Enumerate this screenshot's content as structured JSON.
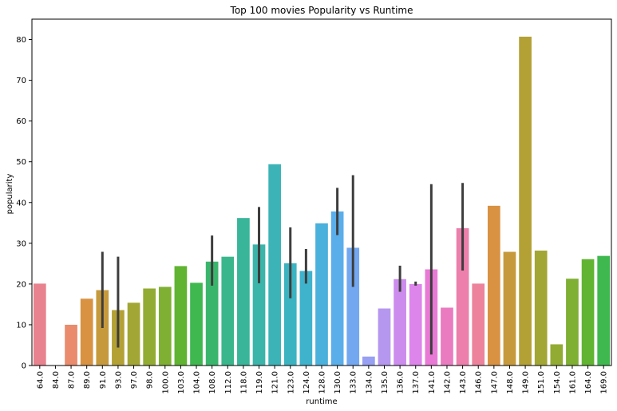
{
  "chart_data": {
    "type": "bar",
    "title": "Top 100 movies Popularity vs Runtime",
    "xlabel": "runtime",
    "ylabel": "popularity",
    "ylim": [
      0,
      85
    ],
    "yticks": [
      0,
      10,
      20,
      30,
      40,
      50,
      60,
      70,
      80
    ],
    "categories": [
      "64.0",
      "84.0",
      "87.0",
      "89.0",
      "91.0",
      "93.0",
      "97.0",
      "98.0",
      "100.0",
      "103.0",
      "104.0",
      "108.0",
      "112.0",
      "118.0",
      "119.0",
      "121.0",
      "123.0",
      "124.0",
      "128.0",
      "130.0",
      "133.0",
      "134.0",
      "135.0",
      "136.0",
      "137.0",
      "141.0",
      "142.0",
      "143.0",
      "146.0",
      "147.0",
      "148.0",
      "149.0",
      "151.0",
      "154.0",
      "161.0",
      "164.0",
      "169.0"
    ],
    "values": [
      20.1,
      0.0,
      10.0,
      16.4,
      18.5,
      13.6,
      15.4,
      18.9,
      19.3,
      24.4,
      20.3,
      25.5,
      26.7,
      36.2,
      29.7,
      49.4,
      25.1,
      23.2,
      34.9,
      37.8,
      28.9,
      2.2,
      14.0,
      21.2,
      20.0,
      23.6,
      14.2,
      33.7,
      20.1,
      39.2,
      27.9,
      80.7,
      28.2,
      5.2,
      21.3,
      26.1,
      26.9
    ],
    "error_bars": [
      null,
      null,
      null,
      null,
      [
        9.2,
        27.9
      ],
      [
        4.4,
        26.7
      ],
      null,
      null,
      null,
      null,
      null,
      [
        19.6,
        31.9
      ],
      null,
      null,
      [
        20.2,
        38.9
      ],
      null,
      [
        16.5,
        33.9
      ],
      [
        20.1,
        28.6
      ],
      null,
      [
        32.0,
        43.6
      ],
      [
        19.3,
        46.7
      ],
      null,
      null,
      [
        18.1,
        24.5
      ],
      [
        19.6,
        20.6
      ],
      [
        2.7,
        44.5
      ],
      null,
      [
        23.3,
        44.8
      ],
      null,
      null,
      null,
      null,
      null,
      null,
      null,
      null,
      null
    ],
    "colors": [
      "#e8828e",
      "#e98564",
      "#e98b6c",
      "#d89242",
      "#c69a3c",
      "#b3a136",
      "#a2a634",
      "#92ab33",
      "#7faf33",
      "#61b332",
      "#3fb84f",
      "#3ab66c",
      "#3ab68c",
      "#39b59a",
      "#3bb4aa",
      "#3cb3b7",
      "#3cb3c1",
      "#3fb2cc",
      "#4ab0dc",
      "#5aaeea",
      "#73a8f0",
      "#97a0f2",
      "#b697ef",
      "#cc8ced",
      "#dd85eb",
      "#e87ad5",
      "#ea7bc1",
      "#ec7fab",
      "#ec829c",
      "#d89242",
      "#c69a3c",
      "#b3a136",
      "#a2a634",
      "#92ab33",
      "#7faf33",
      "#61b332",
      "#3fb84f"
    ],
    "grid": false,
    "legend": "none"
  }
}
